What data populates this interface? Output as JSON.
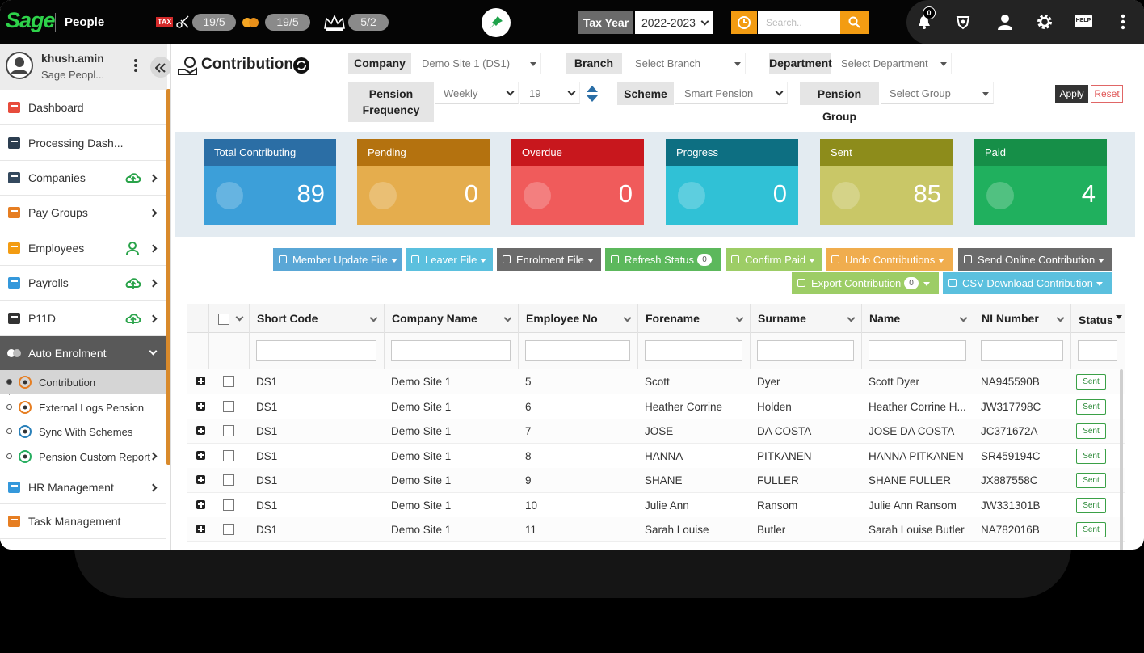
{
  "topbar": {
    "logo": "Sage",
    "product": "People",
    "tax_icon": "TAX",
    "badges": [
      "19/5",
      "19/5",
      "5/2"
    ],
    "tax_year_label": "Tax Year",
    "tax_year": "2022-2023",
    "search_placeholder": "Search..",
    "notification_count": 0,
    "help": "HELP"
  },
  "sidebar": {
    "user_name": "khush.amin",
    "user_company": "Sage Peopl...",
    "menu": [
      "Dashboard",
      "Processing Dash...",
      "Companies",
      "Pay Groups",
      "Employees",
      "Payrolls",
      "P11D",
      "Auto Enrolment"
    ],
    "submenu": [
      "Contribution",
      "External Logs Pension",
      "Sync With Schemes",
      "Pension Custom Report"
    ],
    "menu_after": [
      "HR Management",
      "Task Management"
    ]
  },
  "header": {
    "title": "Contribution",
    "filters": [
      {
        "label": "Company",
        "value": "Demo Site 1 (DS1)"
      },
      {
        "label": "Branch",
        "value": "Select Branch"
      },
      {
        "label": "Department",
        "value": "Select Department"
      },
      {
        "label": "Pension Frequency",
        "value": "Weekly"
      },
      {
        "label": "Scheme",
        "value": "Smart Pension"
      },
      {
        "label": "Pension Group",
        "value": "Select Group"
      }
    ],
    "pension_week": 19,
    "apply": "Apply",
    "reset": "Reset"
  },
  "cards": [
    {
      "label": "Total Contributing",
      "value": 89
    },
    {
      "label": "Pending",
      "value": 0
    },
    {
      "label": "Overdue",
      "value": 0
    },
    {
      "label": "Progress",
      "value": 0
    },
    {
      "label": "Sent",
      "value": 85
    },
    {
      "label": "Paid",
      "value": 4
    }
  ],
  "actions": [
    {
      "label": "Member Update File"
    },
    {
      "label": "Leaver File"
    },
    {
      "label": "Enrolment File"
    },
    {
      "label": "Refresh Status",
      "count": 0
    },
    {
      "label": "Confirm Paid"
    },
    {
      "label": "Undo Contributions"
    },
    {
      "label": "Send Online Contribution"
    },
    {
      "label": "Export Contribution",
      "count": 0
    },
    {
      "label": "CSV Download Contribution"
    }
  ],
  "table": {
    "columns": [
      "Short Code",
      "Company Name",
      "Employee No",
      "Forename",
      "Surname",
      "Name",
      "NI Number",
      "Status"
    ],
    "rows": [
      [
        "DS1",
        "Demo Site 1",
        5,
        "Scott",
        "Dyer",
        "Scott Dyer",
        "NA945590B",
        "Sent"
      ],
      [
        "DS1",
        "Demo Site 1",
        6,
        "Heather Corrine",
        "Holden",
        "Heather Corrine H...",
        "JW317798C",
        "Sent"
      ],
      [
        "DS1",
        "Demo Site 1",
        7,
        "JOSE",
        "DA COSTA",
        "JOSE DA COSTA",
        "JC371672A",
        "Sent"
      ],
      [
        "DS1",
        "Demo Site 1",
        8,
        "HANNA",
        "PITKANEN",
        "HANNA PITKANEN",
        "SR459194C",
        "Sent"
      ],
      [
        "DS1",
        "Demo Site 1",
        9,
        "SHANE",
        "FULLER",
        "SHANE FULLER",
        "JX887558C",
        "Sent"
      ],
      [
        "DS1",
        "Demo Site 1",
        10,
        "Julie Ann",
        "Ransom",
        "Julie Ann Ransom",
        "JW331301B",
        "Sent"
      ],
      [
        "DS1",
        "Demo Site 1",
        11,
        "Sarah Louise",
        "Butler",
        "Sarah Louise Butler",
        "NA782016B",
        "Sent"
      ]
    ]
  }
}
